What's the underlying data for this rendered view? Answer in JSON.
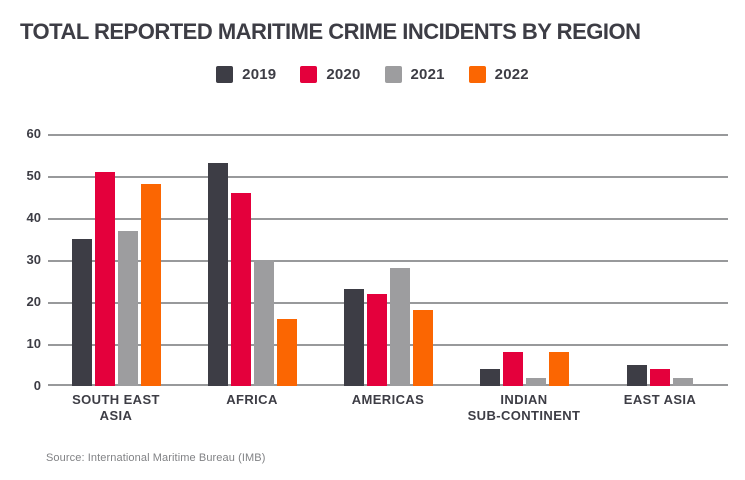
{
  "title": "TOTAL REPORTED MARITIME CRIME INCIDENTS BY REGION",
  "source": "Source: International Maritime Bureau (IMB)",
  "colors": {
    "title_text": "#3d3d45",
    "axis_text": "#3d3d45",
    "gridline": "#98999b",
    "source_text": "#818285",
    "background": "#ffffff",
    "series_2019": "#3d3d45",
    "series_2020": "#e4003c",
    "series_2021": "#9d9d9f",
    "series_2022": "#fb6602"
  },
  "chart_data": {
    "type": "bar",
    "title": "TOTAL REPORTED MARITIME CRIME INCIDENTS BY REGION",
    "categories": [
      "SOUTH EAST ASIA",
      "AFRICA",
      "AMERICAS",
      "INDIAN SUB-CONTINENT",
      "EAST ASIA"
    ],
    "category_label_lines": [
      [
        "SOUTH EAST",
        "ASIA"
      ],
      [
        "AFRICA"
      ],
      [
        "AMERICAS"
      ],
      [
        "INDIAN",
        "SUB-CONTINENT"
      ],
      [
        "EAST ASIA"
      ]
    ],
    "series": [
      {
        "name": "2019",
        "color": "#3d3d45",
        "values": [
          35,
          53,
          23,
          4,
          5
        ]
      },
      {
        "name": "2020",
        "color": "#e4003c",
        "values": [
          51,
          46,
          22,
          8,
          4
        ]
      },
      {
        "name": "2021",
        "color": "#9d9d9f",
        "values": [
          37,
          30,
          28,
          2,
          2
        ]
      },
      {
        "name": "2022",
        "color": "#fb6602",
        "values": [
          48,
          16,
          18,
          8,
          0
        ]
      }
    ],
    "xlabel": "",
    "ylabel": "",
    "ylim": [
      0,
      60
    ],
    "yticks": [
      0,
      10,
      20,
      30,
      40,
      50,
      60
    ],
    "grid": true,
    "legend_position": "top-center",
    "source": "Source: International Maritime Bureau (IMB)"
  }
}
